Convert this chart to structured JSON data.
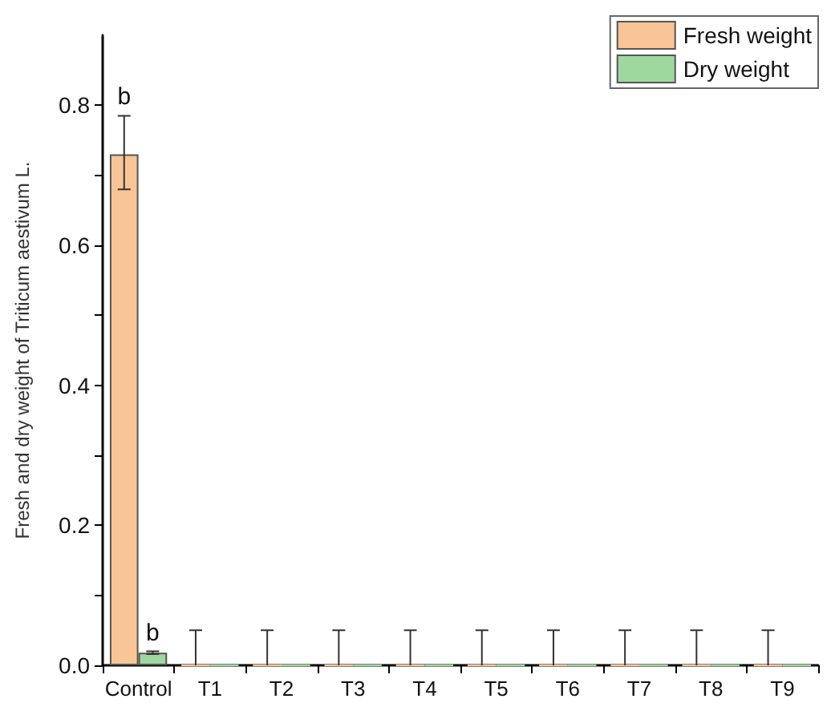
{
  "chart_data": {
    "type": "bar",
    "ylabel": "Fresh and dry weight of Triticum aestivum L.",
    "categories": [
      "Control",
      "T1",
      "T2",
      "T3",
      "T4",
      "T5",
      "T6",
      "T7",
      "T8",
      "T9"
    ],
    "series": [
      {
        "name": "Fresh weight",
        "color": "#f9c596",
        "values": [
          0.73,
          0,
          0,
          0,
          0,
          0,
          0,
          0,
          0,
          0
        ],
        "errors": [
          [
            0.68,
            0.785
          ],
          [
            0,
            0.05
          ],
          [
            0,
            0.05
          ],
          [
            0,
            0.05
          ],
          [
            0,
            0.05
          ],
          [
            0,
            0.05
          ],
          [
            0,
            0.05
          ],
          [
            0,
            0.05
          ],
          [
            0,
            0.05
          ],
          [
            0,
            0.05
          ]
        ]
      },
      {
        "name": "Dry weight",
        "color": "#9fd89f",
        "values": [
          0.018,
          0,
          0,
          0,
          0,
          0,
          0,
          0,
          0,
          0
        ],
        "errors": [
          0.002,
          null,
          null,
          null,
          null,
          null,
          null,
          null,
          null,
          null
        ]
      }
    ],
    "ylim": [
      0,
      0.9
    ],
    "yticks": [
      {
        "value": 0,
        "label": "0.0"
      },
      {
        "value": 0.1,
        "label": null
      },
      0.2,
      {
        "value": 0.3,
        "label": null
      },
      0.4,
      {
        "value": 0.5,
        "label": null
      },
      0.6,
      {
        "value": 0.7,
        "label": null
      },
      0.8
    ],
    "annotations": [
      {
        "text": "b",
        "x": "Control",
        "y": 0.785
      },
      {
        "text": "b",
        "x": "Control",
        "y": 0.02
      }
    ],
    "legend": "top right",
    "grid": false
  }
}
